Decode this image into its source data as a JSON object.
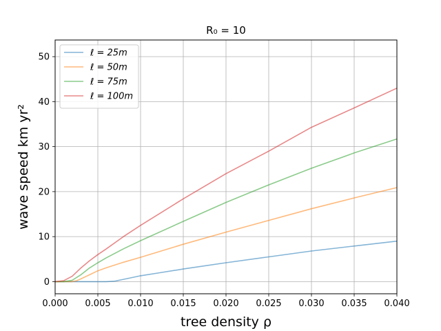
{
  "chart_data": {
    "type": "line",
    "title": "R₀ = 10",
    "xlabel": "tree density ρ",
    "ylabel": "wave speed km yr²",
    "xlim": [
      0.0,
      0.04
    ],
    "ylim": [
      -2.7,
      53.7
    ],
    "xticks": [
      "0.000",
      "0.005",
      "0.010",
      "0.015",
      "0.020",
      "0.025",
      "0.030",
      "0.035",
      "0.040"
    ],
    "yticks": [
      "0",
      "10",
      "20",
      "30",
      "40",
      "50"
    ],
    "grid": true,
    "legend_position": "upper-left",
    "series": [
      {
        "name": "ℓ = 25m",
        "color": "#1f77b4",
        "points": [
          [
            0.0,
            0.0
          ],
          [
            0.004,
            0.0
          ],
          [
            0.006,
            0.0
          ],
          [
            0.007,
            0.1
          ],
          [
            0.0075,
            0.3
          ],
          [
            0.008,
            0.5
          ],
          [
            0.009,
            0.9
          ],
          [
            0.01,
            1.3
          ],
          [
            0.012,
            1.9
          ],
          [
            0.015,
            2.8
          ],
          [
            0.02,
            4.2
          ],
          [
            0.025,
            5.5
          ],
          [
            0.03,
            6.8
          ],
          [
            0.035,
            7.9
          ],
          [
            0.04,
            9.0
          ]
        ]
      },
      {
        "name": "ℓ = 50m",
        "color": "#ff7f0e",
        "points": [
          [
            0.0,
            0.0
          ],
          [
            0.002,
            0.0
          ],
          [
            0.0025,
            0.2
          ],
          [
            0.003,
            0.6
          ],
          [
            0.004,
            1.5
          ],
          [
            0.005,
            2.4
          ],
          [
            0.006,
            3.1
          ],
          [
            0.008,
            4.3
          ],
          [
            0.01,
            5.4
          ],
          [
            0.015,
            8.3
          ],
          [
            0.02,
            11.0
          ],
          [
            0.025,
            13.6
          ],
          [
            0.03,
            16.2
          ],
          [
            0.035,
            18.6
          ],
          [
            0.04,
            20.9
          ]
        ]
      },
      {
        "name": "ℓ = 75m",
        "color": "#2ca02c",
        "points": [
          [
            0.0,
            0.0
          ],
          [
            0.001,
            0.0
          ],
          [
            0.002,
            0.3
          ],
          [
            0.003,
            1.5
          ],
          [
            0.004,
            3.0
          ],
          [
            0.005,
            4.2
          ],
          [
            0.006,
            5.3
          ],
          [
            0.008,
            7.3
          ],
          [
            0.01,
            9.1
          ],
          [
            0.015,
            13.4
          ],
          [
            0.02,
            17.6
          ],
          [
            0.025,
            21.5
          ],
          [
            0.03,
            25.2
          ],
          [
            0.035,
            28.6
          ],
          [
            0.04,
            31.7
          ]
        ]
      },
      {
        "name": "ℓ = 100m",
        "color": "#d62728",
        "points": [
          [
            0.0,
            0.0
          ],
          [
            0.001,
            0.2
          ],
          [
            0.002,
            1.2
          ],
          [
            0.003,
            3.0
          ],
          [
            0.004,
            4.6
          ],
          [
            0.005,
            6.0
          ],
          [
            0.006,
            7.3
          ],
          [
            0.008,
            10.0
          ],
          [
            0.01,
            12.5
          ],
          [
            0.015,
            18.4
          ],
          [
            0.02,
            24.0
          ],
          [
            0.025,
            29.0
          ],
          [
            0.03,
            34.3
          ],
          [
            0.035,
            38.6
          ],
          [
            0.04,
            43.0
          ]
        ]
      }
    ]
  }
}
